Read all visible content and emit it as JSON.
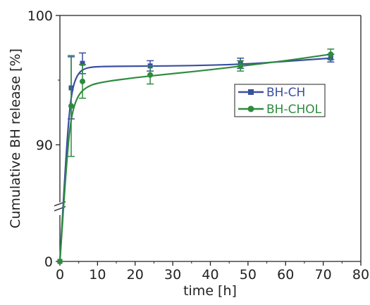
{
  "chart_data": {
    "type": "line",
    "xlabel": "time [h]",
    "ylabel": "Cumulative BH release [%]",
    "xlim": [
      0,
      80
    ],
    "x_ticks": [
      "0",
      "10",
      "20",
      "30",
      "40",
      "50",
      "60",
      "70",
      "80"
    ],
    "y_ticks": [
      "0",
      "90",
      "100"
    ],
    "y_axis_break": true,
    "y_scale_note": "broken axis: 0 at bottom, then 85-100",
    "grid": false,
    "legend_position": "right-center",
    "series": [
      {
        "name": "BH-CH",
        "color": "#3a4fa0",
        "marker": "square",
        "points": [
          {
            "x": 0,
            "y": 0,
            "err": 0
          },
          {
            "x": 3,
            "y": 94.4,
            "err": 2.4
          },
          {
            "x": 6,
            "y": 96.3,
            "err": 0.8
          },
          {
            "x": 24,
            "y": 96.1,
            "err": 0.4
          },
          {
            "x": 48,
            "y": 96.3,
            "err": 0.4
          },
          {
            "x": 72,
            "y": 96.7,
            "err": 0.3
          }
        ],
        "fit": [
          [
            0,
            0
          ],
          [
            1.5,
            88.5
          ],
          [
            2.5,
            92.6
          ],
          [
            3.5,
            94.6
          ],
          [
            5,
            95.6
          ],
          [
            7,
            95.95
          ],
          [
            10,
            96.05
          ],
          [
            20,
            96.08
          ],
          [
            30,
            96.1
          ],
          [
            40,
            96.15
          ],
          [
            50,
            96.25
          ],
          [
            60,
            96.45
          ],
          [
            72,
            96.7
          ]
        ]
      },
      {
        "name": "BH-CHOL",
        "color": "#2e8b3e",
        "marker": "circle",
        "points": [
          {
            "x": 0,
            "y": 0,
            "err": 0
          },
          {
            "x": 3,
            "y": 93.0,
            "err": 3.9
          },
          {
            "x": 6,
            "y": 94.9,
            "err": 1.3
          },
          {
            "x": 24,
            "y": 95.4,
            "err": 0.7
          },
          {
            "x": 48,
            "y": 96.1,
            "err": 0.4
          },
          {
            "x": 72,
            "y": 97.0,
            "err": 0.4
          }
        ],
        "fit": [
          [
            0,
            0
          ],
          [
            1.5,
            87.5
          ],
          [
            2.5,
            91.0
          ],
          [
            3.5,
            92.8
          ],
          [
            5,
            93.9
          ],
          [
            7,
            94.45
          ],
          [
            10,
            94.8
          ],
          [
            20,
            95.2
          ],
          [
            30,
            95.5
          ],
          [
            40,
            95.8
          ],
          [
            50,
            96.15
          ],
          [
            60,
            96.5
          ],
          [
            72,
            97.0
          ]
        ]
      }
    ]
  }
}
